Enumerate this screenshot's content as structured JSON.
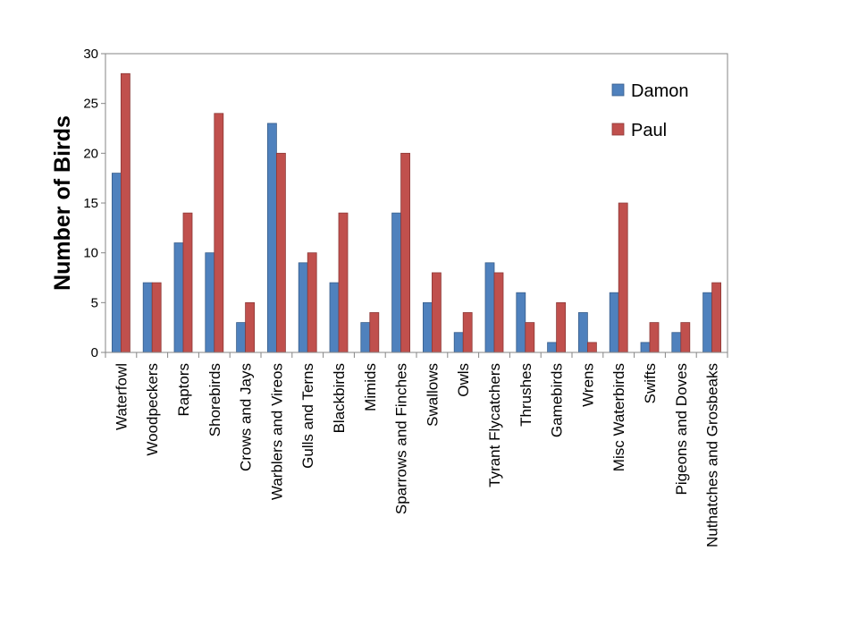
{
  "chart_data": {
    "type": "bar",
    "title": "",
    "xlabel": "",
    "ylabel": "Number of Birds",
    "ylim": [
      0,
      30
    ],
    "yticks": [
      0,
      5,
      10,
      15,
      20,
      25,
      30
    ],
    "legend_position": "top-right",
    "grid": false,
    "categories": [
      "Waterfowl",
      "Woodpeckers",
      "Raptors",
      "Shorebirds",
      "Crows and Jays",
      "Warblers and Vireos",
      "Gulls and Terns",
      "Blackbirds",
      "Mimids",
      "Sparrows and Finches",
      "Swallows",
      "Owls",
      "Tyrant Flycatchers",
      "Thrushes",
      "Gamebirds",
      "Wrens",
      "Misc Waterbirds",
      "Swifts",
      "Pigeons and Doves",
      "Nuthatches and Grosbeaks"
    ],
    "series": [
      {
        "name": "Damon",
        "color": "#4f81bd",
        "edge": "#385d8a",
        "values": [
          18,
          7,
          11,
          10,
          3,
          23,
          9,
          7,
          3,
          14,
          5,
          2,
          9,
          6,
          1,
          4,
          6,
          1,
          2,
          6
        ]
      },
      {
        "name": "Paul",
        "color": "#c0504d",
        "edge": "#8c3836",
        "values": [
          28,
          7,
          14,
          24,
          5,
          20,
          10,
          14,
          4,
          20,
          8,
          4,
          8,
          3,
          5,
          1,
          15,
          3,
          3,
          7
        ]
      }
    ]
  }
}
